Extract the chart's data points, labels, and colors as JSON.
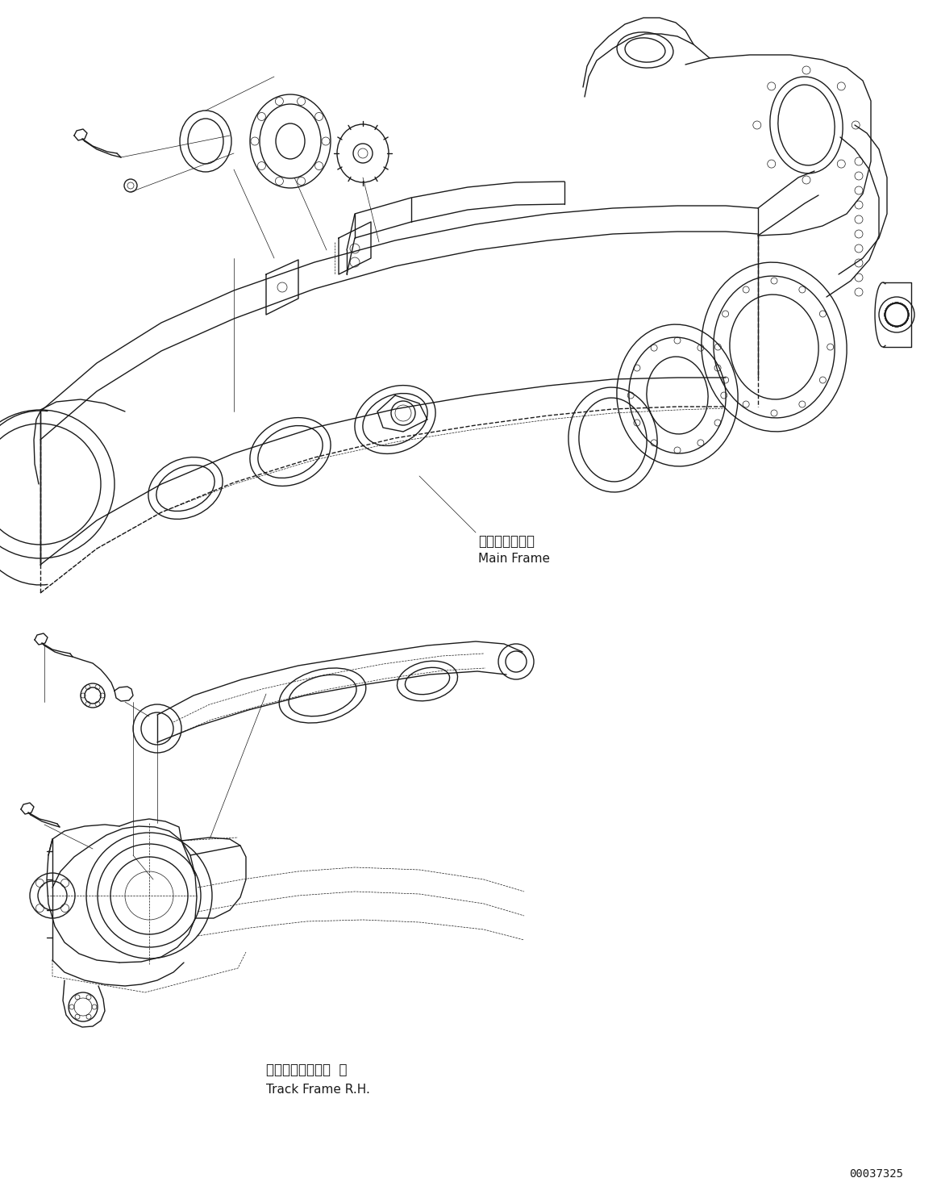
{
  "background_color": "#ffffff",
  "line_color": "#1a1a1a",
  "figure_width": 11.62,
  "figure_height": 14.91,
  "dpi": 100,
  "part_number": "00037325",
  "label_main_frame_jp": "メインフレーム",
  "label_main_frame_en": "Main Frame",
  "label_track_frame_jp": "トラックフレーム  右",
  "label_track_frame_en": "Track Frame R.H.",
  "lw": 1.0,
  "tlw": 0.5
}
